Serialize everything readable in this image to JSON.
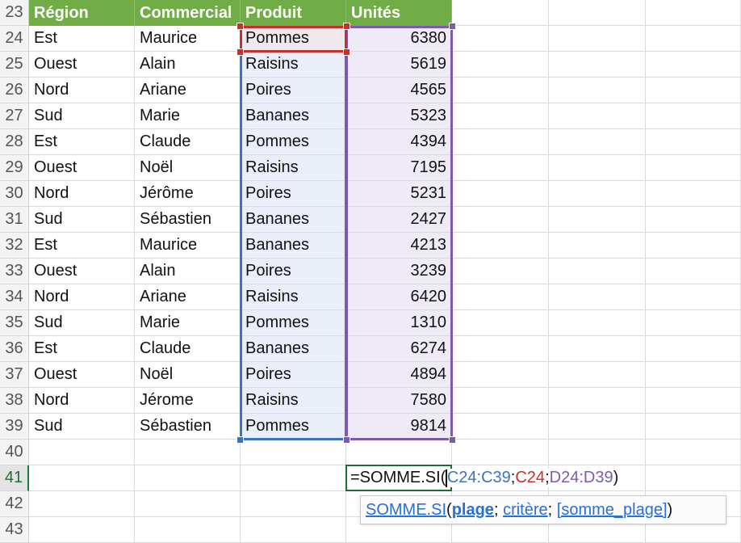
{
  "sheet": {
    "header": {
      "row_number": "23",
      "columns": [
        "Région",
        "Commercial",
        "Produit",
        "Unités"
      ]
    },
    "rows": [
      {
        "n": "24",
        "region": "Est",
        "commercial": "Maurice",
        "produit": "Pommes",
        "unites": "6380"
      },
      {
        "n": "25",
        "region": "Ouest",
        "commercial": "Alain",
        "produit": "Raisins",
        "unites": "5619"
      },
      {
        "n": "26",
        "region": "Nord",
        "commercial": "Ariane",
        "produit": "Poires",
        "unites": "4565"
      },
      {
        "n": "27",
        "region": "Sud",
        "commercial": "Marie",
        "produit": "Bananes",
        "unites": "5323"
      },
      {
        "n": "28",
        "region": "Est",
        "commercial": "Claude",
        "produit": "Pommes",
        "unites": "4394"
      },
      {
        "n": "29",
        "region": "Ouest",
        "commercial": "Noël",
        "produit": "Raisins",
        "unites": "7195"
      },
      {
        "n": "30",
        "region": "Nord",
        "commercial": "Jérôme",
        "produit": "Poires",
        "unites": "5231"
      },
      {
        "n": "31",
        "region": "Sud",
        "commercial": "Sébastien",
        "produit": "Bananes",
        "unites": "2427"
      },
      {
        "n": "32",
        "region": "Est",
        "commercial": "Maurice",
        "produit": "Bananes",
        "unites": "4213"
      },
      {
        "n": "33",
        "region": "Ouest",
        "commercial": "Alain",
        "produit": "Poires",
        "unites": "3239"
      },
      {
        "n": "34",
        "region": "Nord",
        "commercial": "Ariane",
        "produit": "Raisins",
        "unites": "6420"
      },
      {
        "n": "35",
        "region": "Sud",
        "commercial": "Marie",
        "produit": "Pommes",
        "unites": "1310"
      },
      {
        "n": "36",
        "region": "Est",
        "commercial": "Claude",
        "produit": "Bananes",
        "unites": "6274"
      },
      {
        "n": "37",
        "region": "Ouest",
        "commercial": "Noël",
        "produit": "Poires",
        "unites": "4894"
      },
      {
        "n": "38",
        "region": "Nord",
        "commercial": "Jérome",
        "produit": "Raisins",
        "unites": "7580"
      },
      {
        "n": "39",
        "region": "Sud",
        "commercial": "Sébastien",
        "produit": "Pommes",
        "unites": "9814"
      }
    ],
    "empty_rows": [
      "40",
      "41",
      "42",
      "43"
    ],
    "active_row": "41"
  },
  "formula": {
    "prefix": "=SOMME.SI(",
    "ref_range": "C24:C39",
    "sep1": ";",
    "ref_criteria": "C24",
    "sep2": ";",
    "ref_sum": "D24:D39",
    "suffix": ")"
  },
  "tooltip": {
    "func": "SOMME.SI",
    "open": "(",
    "arg1": "plage",
    "sep1": "; ",
    "arg2": "critère",
    "sep2": "; ",
    "arg3": "[somme_plage]",
    "close": ")"
  },
  "colors": {
    "header_green": "#70ad47",
    "range_blue": "#3b73c4",
    "criteria_red": "#c4302b",
    "sum_purple": "#7b5bb1",
    "active_green": "#1f6b3a"
  }
}
